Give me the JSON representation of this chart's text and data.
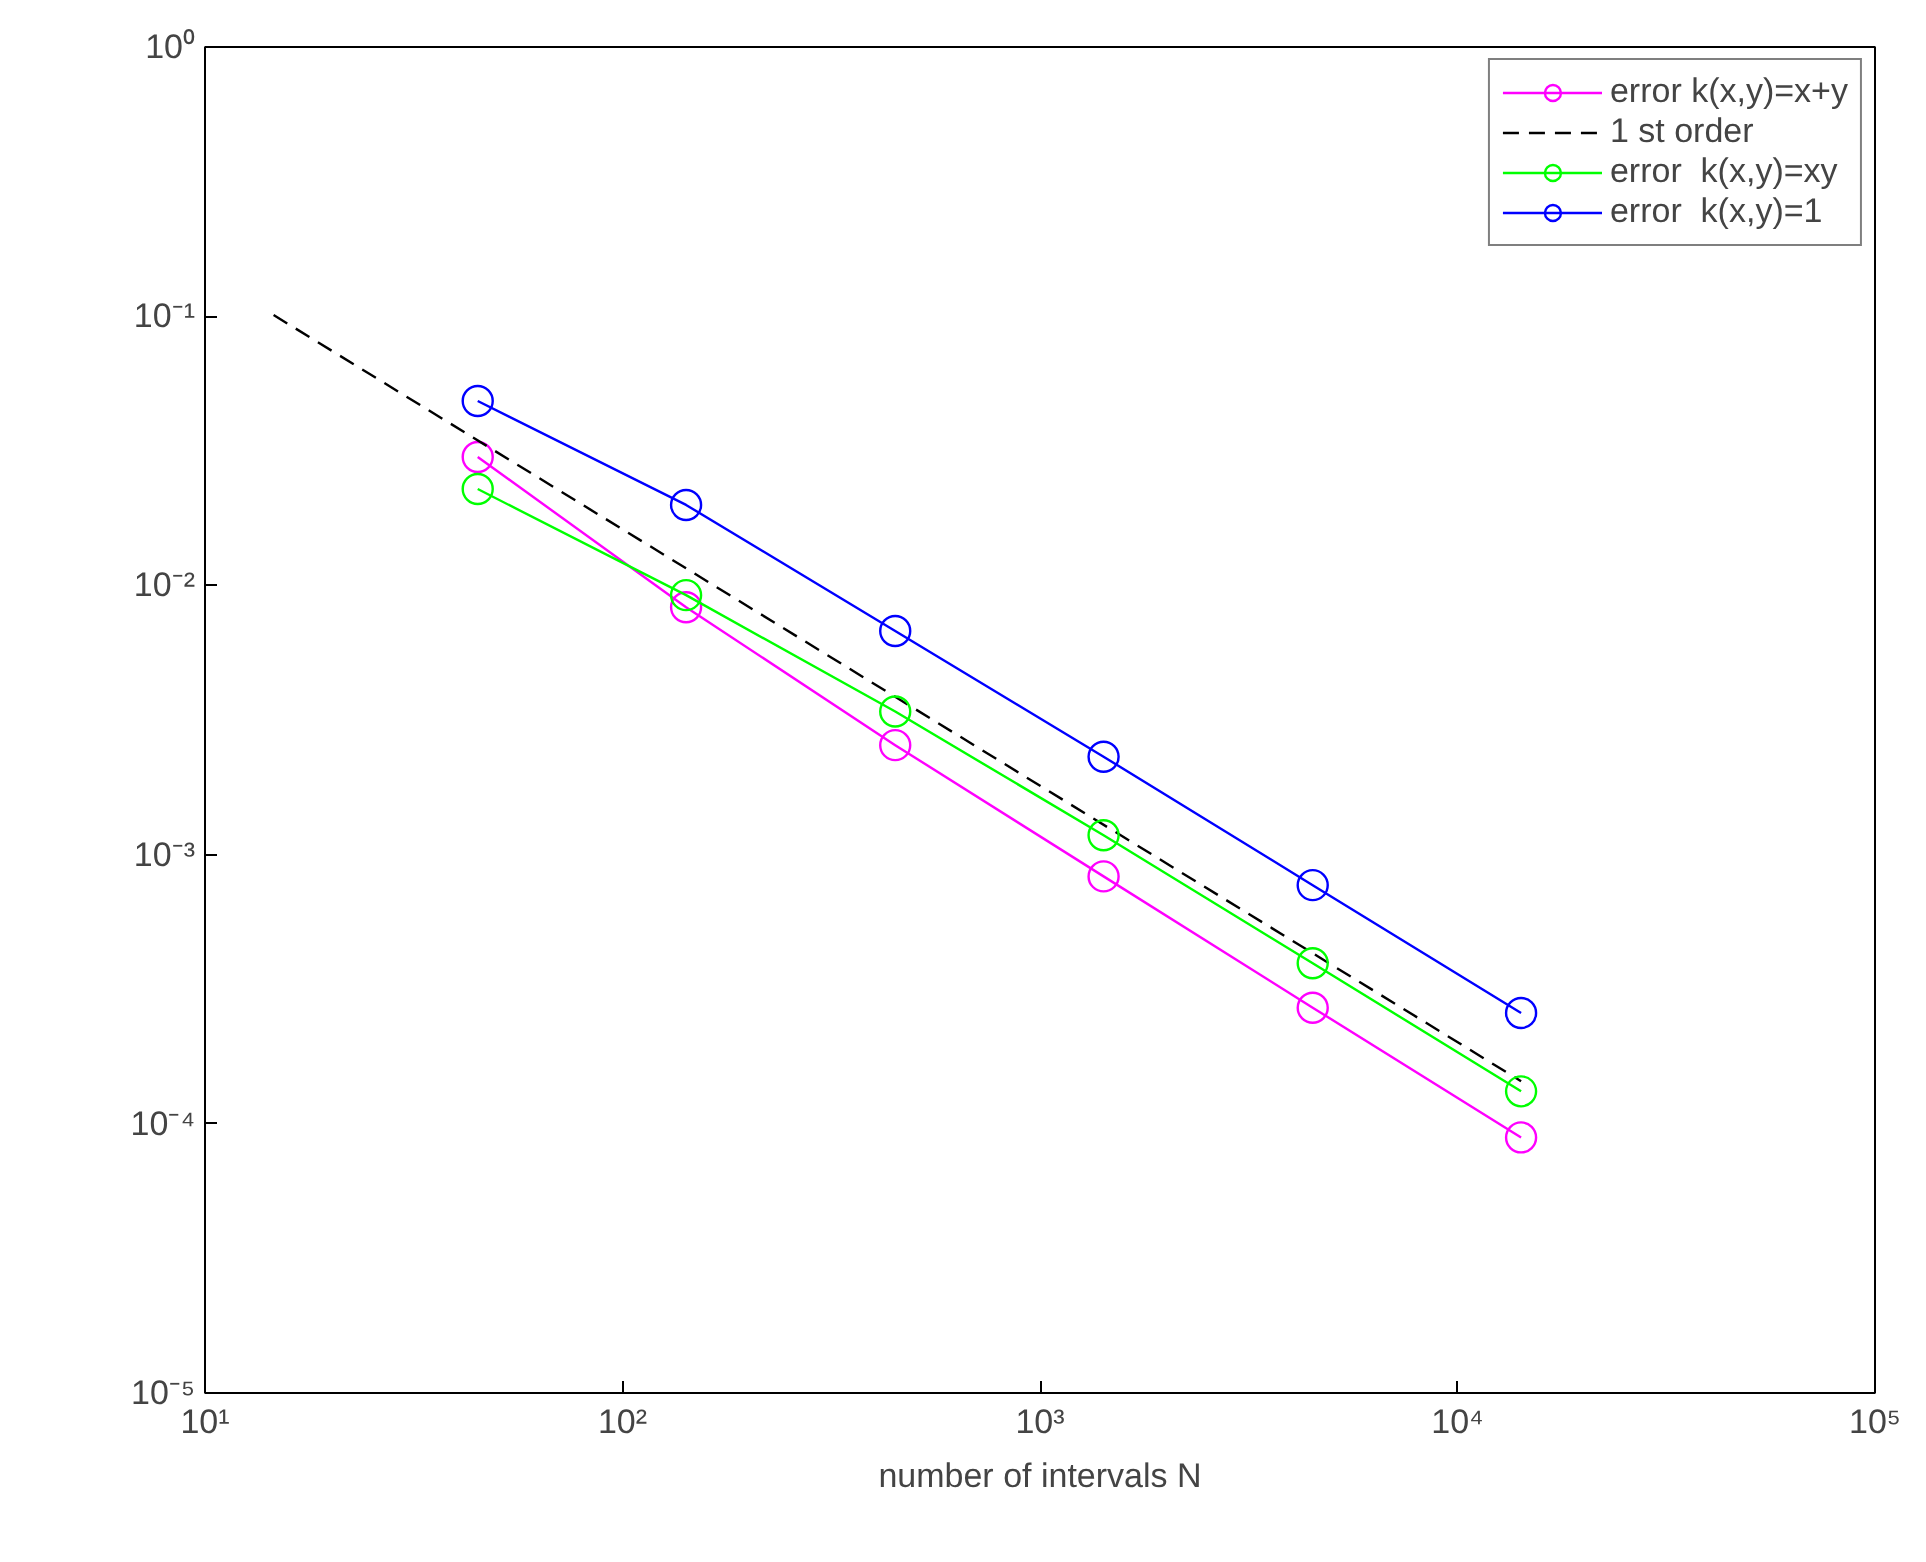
{
  "chart_data": {
    "type": "line",
    "xlabel": "number of intervals N",
    "log": "xy",
    "grid": false,
    "legend": "top right",
    "marker": "circle",
    "xlim": [
      10,
      100000
    ],
    "ylim": [
      1e-05,
      1
    ],
    "xticks": [
      {
        "value": 10,
        "label": "10¹"
      },
      {
        "value": 100,
        "label": "10²"
      },
      {
        "value": 1000,
        "label": "10³"
      },
      {
        "value": 10000,
        "label": "10⁴"
      },
      {
        "value": 100000,
        "label": "10⁵"
      }
    ],
    "yticks": [
      {
        "value": 1e-05,
        "label": "10⁻⁵"
      },
      {
        "value": 0.0001,
        "label": "10⁻⁴"
      },
      {
        "value": 0.001,
        "label": "10⁻³"
      },
      {
        "value": 0.01,
        "label": "10⁻²"
      },
      {
        "value": 0.1,
        "label": "10⁻¹"
      },
      {
        "value": 1,
        "label": "10⁰"
      }
    ],
    "x": [
      45,
      142,
      450,
      1420,
      4500,
      14200
    ],
    "series": [
      {
        "name": "error k(x,y)=x+y",
        "color": "#ff00ff",
        "values": [
          0.03,
          0.0083,
          0.00255,
          0.00083,
          0.00027,
          8.9e-05
        ]
      },
      {
        "name": "1 st order",
        "color": "#000000",
        "x": [
          14.6,
          14200
        ],
        "values": [
          0.101,
          0.000144
        ],
        "marker": "none",
        "line_style": "dashed"
      },
      {
        "name": "error  k(x,y)=xy",
        "color": "#00ff00",
        "values": [
          0.0228,
          0.0092,
          0.0034,
          0.00118,
          0.000395,
          0.000132
        ]
      },
      {
        "name": "error  k(x,y)=1",
        "color": "#0000ff",
        "values": [
          0.0484,
          0.0199,
          0.00677,
          0.00231,
          0.00077,
          0.000258
        ]
      }
    ]
  }
}
